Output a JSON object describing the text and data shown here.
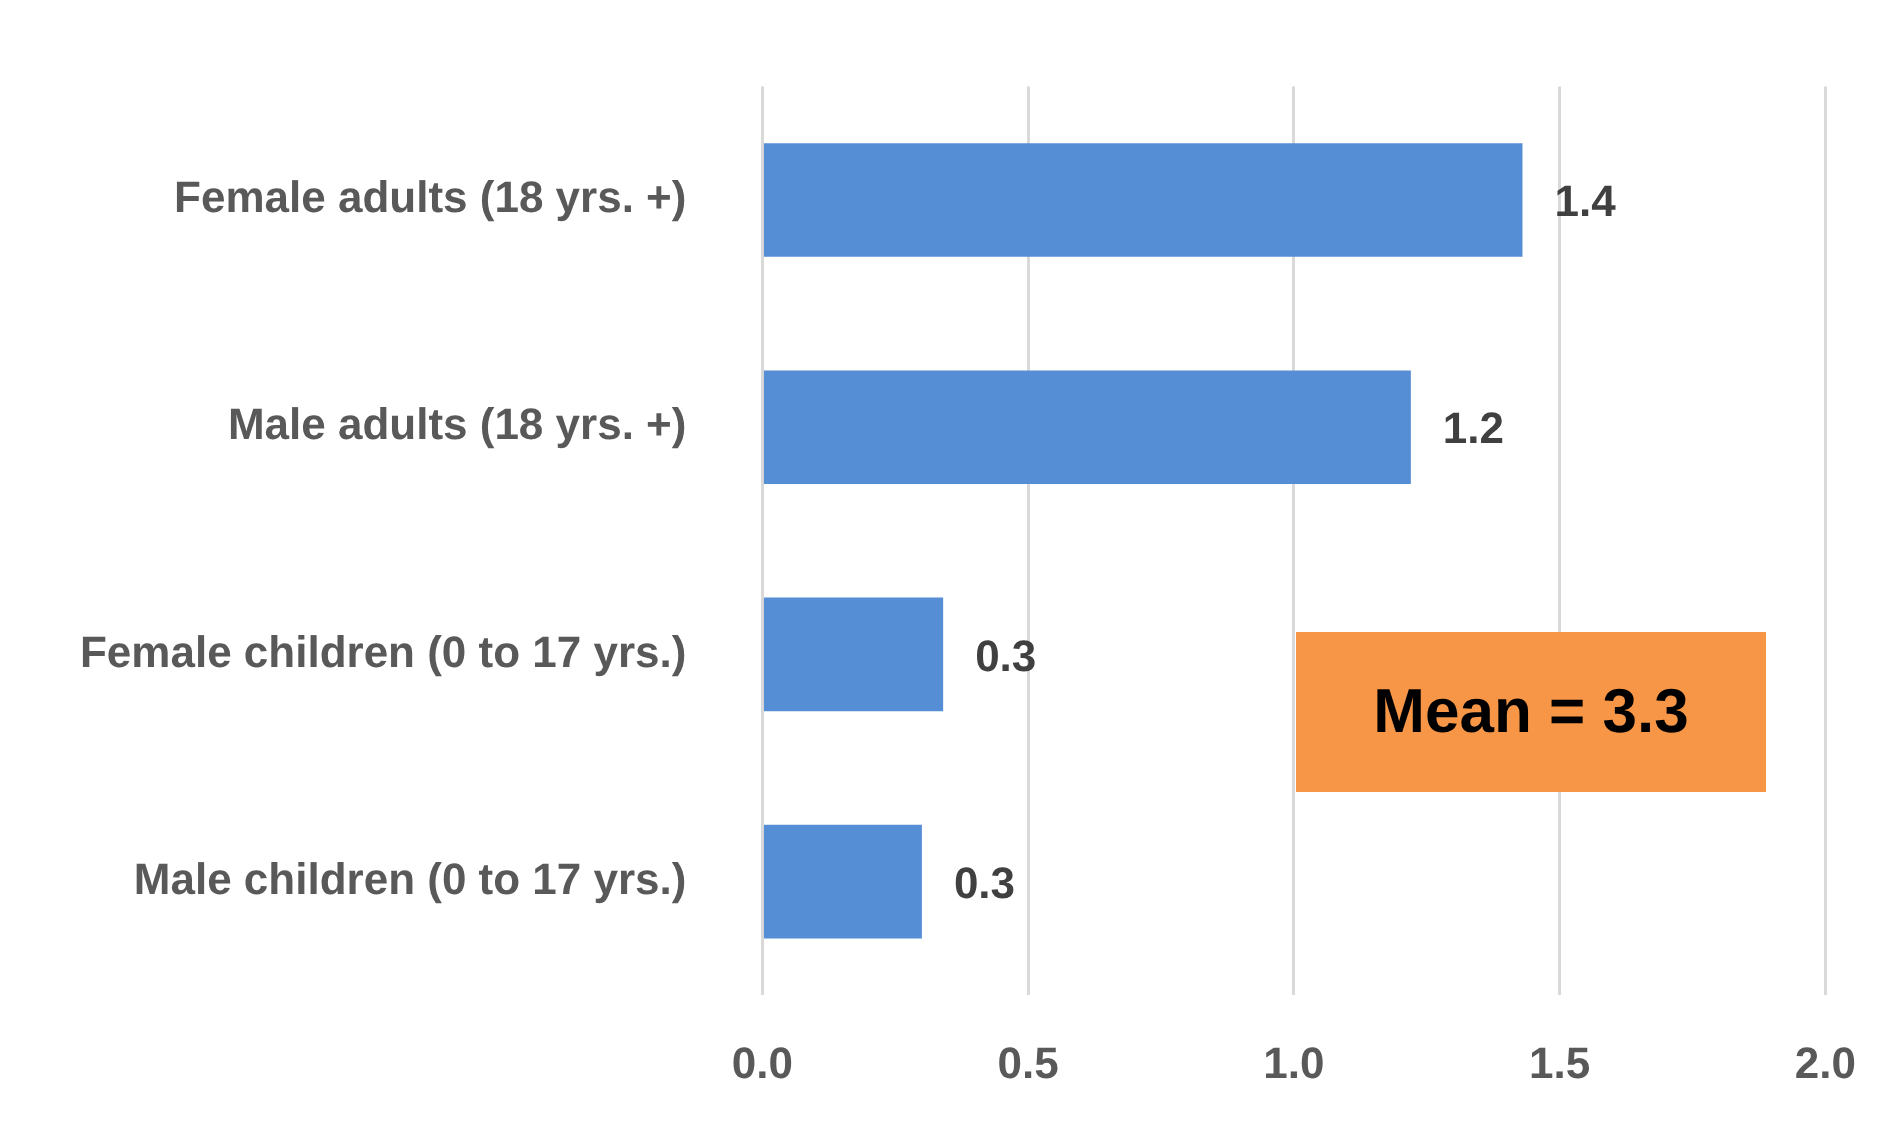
{
  "chart_data": {
    "type": "bar",
    "orientation": "horizontal",
    "categories": [
      "Female adults (18 yrs. +)",
      "Male adults (18 yrs. +)",
      "Female children (0 to 17 yrs.)",
      "Male children (0 to 17 yrs.)"
    ],
    "values": [
      1.43,
      1.22,
      0.34,
      0.3
    ],
    "value_labels": [
      "1.4",
      "1.2",
      "0.3",
      "0.3"
    ],
    "color": "#558ed5",
    "xlim": [
      0,
      2
    ],
    "xticks": [
      {
        "value": 0,
        "label": "0.0"
      },
      {
        "value": 0.5,
        "label": "0.5"
      },
      {
        "value": 1,
        "label": "1.0"
      },
      {
        "value": 1.5,
        "label": "1.5"
      },
      {
        "value": 2,
        "label": "2.0"
      }
    ],
    "grid": "x",
    "annotations": [
      "Mean = 3.3"
    ]
  }
}
